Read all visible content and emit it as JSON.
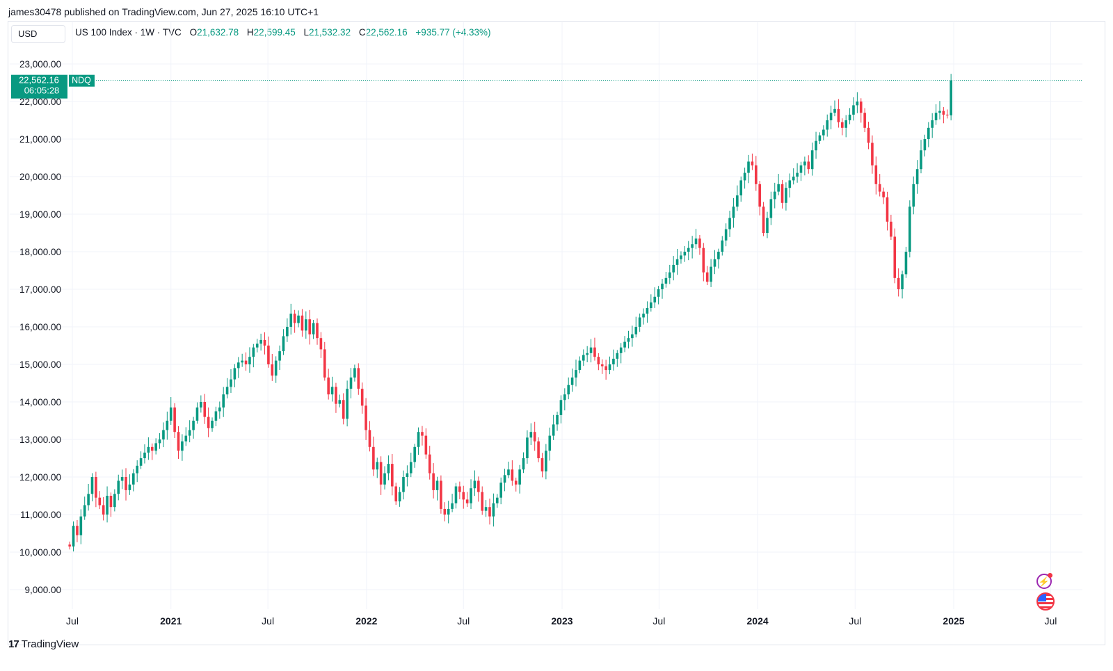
{
  "header": {
    "published_line": "james30478 published on TradingView.com, Jun 27, 2025 16:10 UTC+1"
  },
  "toolbar": {
    "currency": "USD"
  },
  "legend": {
    "symbol": "US 100 Index · 1W · TVC",
    "open_label": "O",
    "open": "21,632.78",
    "high_label": "H",
    "high": "22,599.45",
    "low_label": "L",
    "low": "21,532.32",
    "close_label": "C",
    "close": "22,562.16",
    "change": "+935.77 (+4.33%)"
  },
  "price_tag": {
    "price": "22,562.16",
    "countdown": "06:05:28",
    "exchange": "NDQ"
  },
  "footer": {
    "brand_mark": "17",
    "brand": "TradingView"
  },
  "icons": [
    "lightning-icon",
    "us-flag-icon"
  ],
  "colors": {
    "up": "#089981",
    "down": "#f23645",
    "grid": "#f0f3fa",
    "text": "#131722"
  },
  "chart_data": {
    "type": "candlestick",
    "interval": "1W",
    "ylim": [
      8600,
      23400
    ],
    "y_ticks": [
      "23,000.00",
      "22,000.00",
      "21,000.00",
      "20,000.00",
      "19,000.00",
      "18,000.00",
      "17,000.00",
      "16,000.00",
      "15,000.00",
      "14,000.00",
      "13,000.00",
      "12,000.00",
      "11,000.00",
      "10,000.00",
      "9,000.00"
    ],
    "x_ticks": [
      {
        "date": "2020-07-01",
        "label": "Jul",
        "bold": false
      },
      {
        "date": "2021-01-01",
        "label": "2021",
        "bold": true
      },
      {
        "date": "2021-07-01",
        "label": "Jul",
        "bold": false
      },
      {
        "date": "2022-01-01",
        "label": "2022",
        "bold": true
      },
      {
        "date": "2022-07-01",
        "label": "Jul",
        "bold": false
      },
      {
        "date": "2023-01-01",
        "label": "2023",
        "bold": true
      },
      {
        "date": "2023-07-01",
        "label": "Jul",
        "bold": false
      },
      {
        "date": "2024-01-01",
        "label": "2024",
        "bold": true
      },
      {
        "date": "2024-07-01",
        "label": "Jul",
        "bold": false
      },
      {
        "date": "2025-01-01",
        "label": "2025",
        "bold": true
      },
      {
        "date": "2025-07-01",
        "label": "Jul",
        "bold": false
      }
    ],
    "last_price": 22562.16,
    "start_date": "2020-06-26",
    "closes": [
      10150,
      10700,
      10450,
      10950,
      11250,
      11550,
      12000,
      11450,
      11250,
      11000,
      11500,
      11200,
      11550,
      11900,
      12000,
      11650,
      11800,
      12100,
      12300,
      12500,
      12650,
      12800,
      12700,
      12900,
      13000,
      13250,
      13500,
      13850,
      13200,
      12700,
      12950,
      13100,
      13250,
      13500,
      13850,
      14000,
      13600,
      13300,
      13500,
      13750,
      13850,
      14200,
      14400,
      14600,
      14900,
      15050,
      15100,
      15000,
      15200,
      15450,
      15550,
      15650,
      15500,
      15000,
      14700,
      15100,
      15350,
      15750,
      16000,
      16350,
      16100,
      16300,
      15900,
      16200,
      15800,
      16100,
      15700,
      15400,
      14650,
      14200,
      14400,
      13950,
      14050,
      13550,
      14350,
      14650,
      14900,
      14350,
      13900,
      13250,
      12800,
      12200,
      12400,
      11800,
      12100,
      12350,
      11750,
      11350,
      11600,
      12000,
      12100,
      12400,
      12800,
      13200,
      13100,
      12600,
      12100,
      11650,
      11900,
      11150,
      11000,
      11150,
      11300,
      11750,
      11600,
      11400,
      11300,
      11700,
      11900,
      11600,
      11100,
      11200,
      10950,
      11300,
      11450,
      11850,
      12050,
      12200,
      11900,
      11800,
      12200,
      12500,
      13050,
      13200,
      12950,
      12500,
      12150,
      12700,
      13100,
      13400,
      13650,
      14050,
      14200,
      14450,
      14650,
      14850,
      15100,
      15250,
      15300,
      15450,
      15200,
      15000,
      14950,
      14850,
      15000,
      15150,
      15300,
      15450,
      15600,
      15700,
      15800,
      16000,
      16250,
      16350,
      16500,
      16650,
      16800,
      17000,
      17150,
      17300,
      17450,
      17650,
      17800,
      17900,
      18000,
      18100,
      18200,
      18350,
      18100,
      17450,
      17200,
      17600,
      17800,
      18000,
      18300,
      18600,
      18900,
      19200,
      19500,
      19900,
      20100,
      20400,
      20300,
      19800,
      19200,
      18500,
      18900,
      19400,
      19600,
      19800,
      19300,
      19700,
      19900,
      20000,
      20100,
      20300,
      20400,
      20200,
      20700,
      20950,
      21100,
      21250,
      21500,
      21700,
      21800,
      21450,
      21300,
      21500,
      21650,
      21900,
      22000,
      21700,
      21300,
      20900,
      20300,
      19800,
      19600,
      19450,
      18800,
      18400,
      17300,
      17000,
      17400,
      18000,
      19200,
      19800,
      20200,
      20700,
      21000,
      21300,
      21500,
      21700,
      21750,
      21650,
      21630,
      22562
    ],
    "opens": [
      10200,
      10150,
      10700,
      10450,
      10950,
      11250,
      11550,
      12000,
      11450,
      11250,
      11000,
      11500,
      11200,
      11550,
      11900,
      12000,
      11650,
      11800,
      12100,
      12300,
      12500,
      12650,
      12800,
      12700,
      12900,
      13000,
      13250,
      13500,
      13850,
      13200,
      12700,
      12950,
      13100,
      13250,
      13500,
      13850,
      14000,
      13600,
      13300,
      13500,
      13750,
      13850,
      14200,
      14400,
      14600,
      14900,
      15050,
      15100,
      15000,
      15200,
      15450,
      15550,
      15650,
      15500,
      15000,
      14700,
      15100,
      15350,
      15750,
      16000,
      16350,
      16100,
      16300,
      15900,
      16200,
      15800,
      16100,
      15700,
      15400,
      14650,
      14200,
      14400,
      13950,
      14050,
      13550,
      14350,
      14650,
      14900,
      14350,
      13900,
      13250,
      12800,
      12200,
      12400,
      11800,
      12100,
      12350,
      11750,
      11350,
      11600,
      12000,
      12100,
      12400,
      12800,
      13200,
      13100,
      12600,
      12100,
      11650,
      11900,
      11150,
      11000,
      11150,
      11300,
      11750,
      11600,
      11400,
      11300,
      11700,
      11900,
      11600,
      11100,
      11200,
      10950,
      11300,
      11450,
      11850,
      12050,
      12200,
      11900,
      11800,
      12200,
      12500,
      13050,
      13200,
      12950,
      12500,
      12150,
      12700,
      13100,
      13400,
      13650,
      14050,
      14200,
      14450,
      14650,
      14850,
      15100,
      15250,
      15300,
      15450,
      15200,
      15000,
      14950,
      14850,
      15000,
      15150,
      15300,
      15450,
      15600,
      15700,
      15800,
      16000,
      16250,
      16350,
      16500,
      16650,
      16800,
      17000,
      17150,
      17300,
      17450,
      17650,
      17800,
      17900,
      18000,
      18100,
      18200,
      18350,
      18100,
      17450,
      17200,
      17600,
      17800,
      18000,
      18300,
      18600,
      18900,
      19200,
      19500,
      19900,
      20100,
      20400,
      20300,
      19800,
      19200,
      18500,
      18900,
      19400,
      19600,
      19800,
      19300,
      19700,
      19900,
      20000,
      20100,
      20300,
      20400,
      20200,
      20700,
      20950,
      21100,
      21250,
      21500,
      21700,
      21800,
      21450,
      21300,
      21500,
      21650,
      21900,
      22000,
      21700,
      21300,
      20900,
      20300,
      19800,
      19600,
      19450,
      18800,
      18400,
      17300,
      17000,
      17400,
      18000,
      19200,
      19800,
      20200,
      20700,
      21000,
      21300,
      21500,
      21700,
      21750,
      21650,
      21633
    ]
  }
}
